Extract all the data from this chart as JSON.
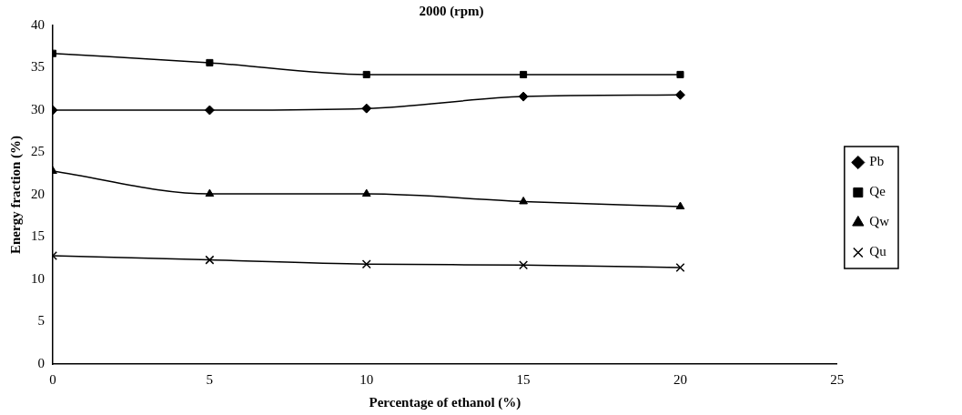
{
  "chart_data": {
    "type": "line",
    "title": "2000 (rpm)",
    "xlabel": "Percentage of ethanol (%)",
    "ylabel": "Energy fraction (%)",
    "x": [
      0,
      5,
      10,
      15,
      20
    ],
    "series": [
      {
        "name": "Pb",
        "color": "#000000",
        "marker": "diamond",
        "values": [
          30,
          30,
          30.2,
          31.6,
          31.8
        ]
      },
      {
        "name": "Qe",
        "color": "#000000",
        "marker": "square",
        "values": [
          36.7,
          35.6,
          34.2,
          34.2,
          34.2
        ]
      },
      {
        "name": "Qw",
        "color": "#000000",
        "marker": "triangle",
        "values": [
          22.8,
          20.1,
          20.1,
          19.2,
          18.6
        ]
      },
      {
        "name": "Qu",
        "color": "#000000",
        "marker": "cross",
        "values": [
          12.8,
          12.3,
          11.8,
          11.7,
          11.4
        ]
      }
    ],
    "xlim": [
      0,
      25
    ],
    "xticks": [
      0,
      5,
      10,
      15,
      20,
      25
    ],
    "ylim": [
      0,
      40
    ],
    "yticks": [
      0,
      5,
      10,
      15,
      20,
      25,
      30,
      35,
      40
    ],
    "grid": false,
    "legend": "right"
  }
}
